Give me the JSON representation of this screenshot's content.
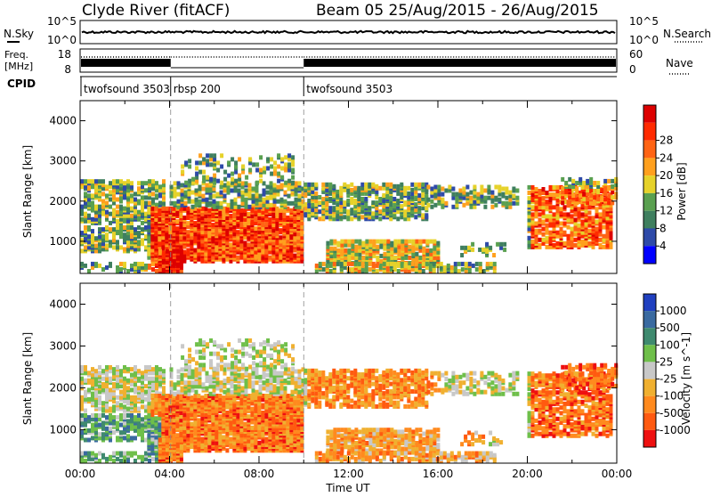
{
  "header": {
    "station": "Clyde River (fitACF)",
    "beam_date": "Beam 05 25/Aug/2015 - 26/Aug/2015"
  },
  "strip_labels": {
    "nsky": "N.Sky",
    "nsearch": "N.Search",
    "freq_line1": "Freq.",
    "freq_line2": "[MHz]",
    "nave": "Nave",
    "cpid": "CPID"
  },
  "strip_ticks": {
    "noise_left": [
      "10^5",
      "10^0"
    ],
    "noise_right": [
      "10^5",
      "10^0"
    ],
    "freq_left": [
      "18",
      "8"
    ],
    "freq_right": [
      "60",
      "0"
    ]
  },
  "cpid_segments": [
    {
      "label": "twofsound 3503",
      "start_h": 0
    },
    {
      "label": "rbsp 200",
      "start_h": 4.05
    },
    {
      "label": "twofsound 3503",
      "start_h": 10.0
    }
  ],
  "chart_data": [
    {
      "type": "heatmap",
      "name": "power-panel",
      "ylabel": "Slant Range [km]",
      "xlim_hours": [
        0,
        24
      ],
      "ylim": [
        200,
        4500
      ],
      "yticks": [
        1000,
        2000,
        3000,
        4000
      ],
      "colorbar_label": "Power [dB]",
      "colorbar_ticks": [
        "4",
        "8",
        "12",
        "16",
        "20",
        "24",
        "28"
      ],
      "colors": [
        "#0000ff",
        "#2e4aa8",
        "#3f7f5f",
        "#5aa050",
        "#e6d22a",
        "#ffa01e",
        "#ff6414",
        "#ff2a00",
        "#dd0000"
      ]
    },
    {
      "type": "heatmap",
      "name": "velocity-panel",
      "ylabel": "Slant Range [km]",
      "xlabel": "Time UT",
      "xlim_hours": [
        0,
        24
      ],
      "ylim": [
        200,
        4500
      ],
      "yticks": [
        1000,
        2000,
        3000,
        4000
      ],
      "xticks": [
        "00:00",
        "04:00",
        "08:00",
        "12:00",
        "16:00",
        "20:00",
        "00:00"
      ],
      "colorbar_label": "Velocity [m s^-1]",
      "colorbar_ticks": [
        "1000",
        "500",
        "100",
        "25",
        "-25",
        "-100",
        "-500",
        "-1000"
      ],
      "colors": [
        "#2040c0",
        "#3a6aa0",
        "#3f8a6f",
        "#6fbf4a",
        "#c8c8c8",
        "#f0b030",
        "#ff8a1e",
        "#ff5a10",
        "#ee1010"
      ]
    }
  ]
}
